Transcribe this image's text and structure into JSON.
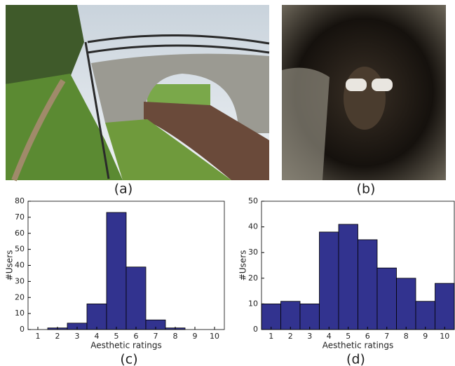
{
  "images": [
    {
      "caption": "(a)"
    },
    {
      "caption": "(b)"
    }
  ],
  "chart_data": [
    {
      "type": "bar",
      "caption": "(c)",
      "xlabel": "Aesthetic ratings",
      "ylabel": "#Users",
      "x": [
        1,
        2,
        3,
        4,
        5,
        6,
        7,
        8,
        9,
        10
      ],
      "values": [
        0,
        1,
        4,
        16,
        73,
        39,
        6,
        1,
        0,
        0
      ],
      "color": "#32338f",
      "xlim": [
        0.5,
        10.5
      ],
      "ylim": [
        0,
        80
      ],
      "xticks": [
        1,
        2,
        3,
        4,
        5,
        6,
        7,
        8,
        9,
        10
      ],
      "yticks": [
        0,
        10,
        20,
        30,
        40,
        50,
        60,
        70,
        80
      ]
    },
    {
      "type": "bar",
      "caption": "(d)",
      "xlabel": "Aesthetic ratings",
      "ylabel": "#Users",
      "x": [
        1,
        2,
        3,
        4,
        5,
        6,
        7,
        8,
        9,
        10
      ],
      "values": [
        10,
        11,
        10,
        38,
        41,
        35,
        24,
        20,
        11,
        18
      ],
      "color": "#32338f",
      "xlim": [
        0.5,
        10.5
      ],
      "ylim": [
        0,
        50
      ],
      "xticks": [
        1,
        2,
        3,
        4,
        5,
        6,
        7,
        8,
        9,
        10
      ],
      "yticks": [
        0,
        10,
        20,
        30,
        40,
        50
      ]
    }
  ]
}
